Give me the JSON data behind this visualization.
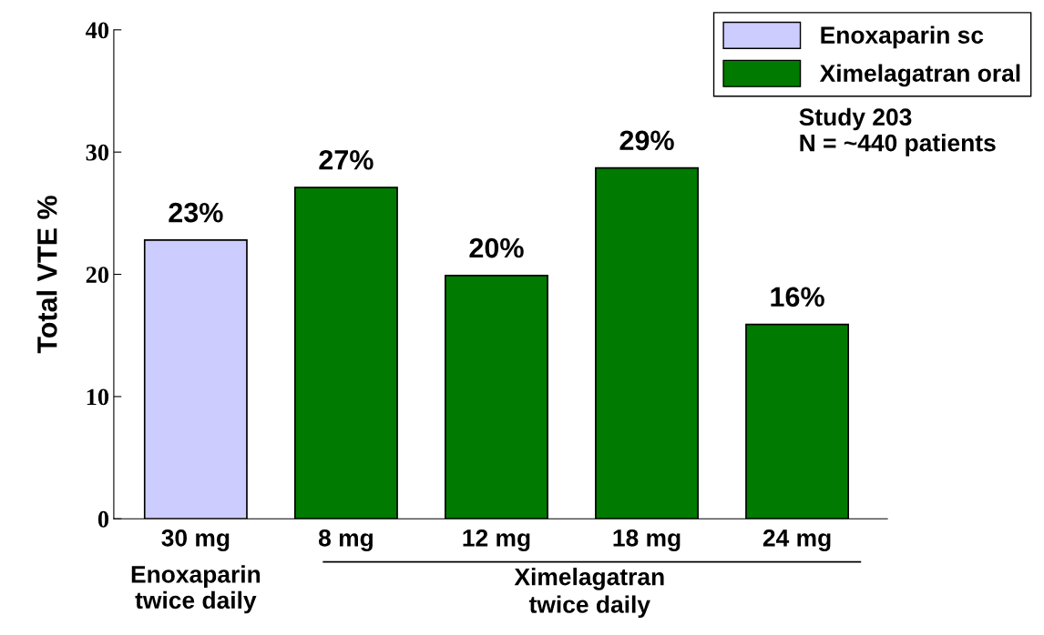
{
  "chart_data": {
    "type": "bar",
    "ylabel": "Total VTE %",
    "categories": [
      "30 mg",
      "8 mg",
      "12 mg",
      "18 mg",
      "24 mg"
    ],
    "series": [
      {
        "name": "Enoxaparin sc",
        "color": "#ccccff",
        "values": [
          22.8,
          null,
          null,
          null,
          null
        ],
        "value_labels": [
          "23%",
          null,
          null,
          null,
          null
        ]
      },
      {
        "name": "Ximelagatran oral",
        "color": "#007a00",
        "values": [
          null,
          27.1,
          19.9,
          28.7,
          15.9
        ],
        "value_labels": [
          null,
          "27%",
          "20%",
          "29%",
          "16%"
        ]
      }
    ],
    "ylim": [
      0,
      40
    ],
    "yticks": [
      0,
      10,
      20,
      30,
      40
    ],
    "grid": false,
    "legend": "top right",
    "annotations": [
      "Study 203\nN = ~440 patients",
      "Enoxaparin\ntwice daily",
      "Ximelagatran\ntwice daily"
    ]
  }
}
